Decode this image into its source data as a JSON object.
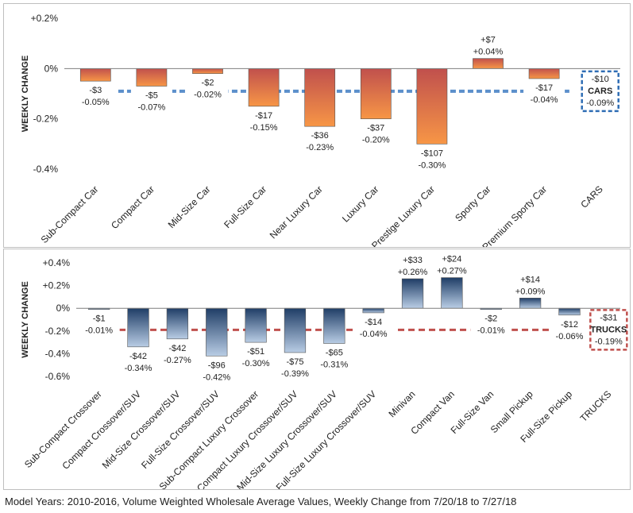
{
  "caption": "Model Years: 2010-2016, Volume Weighted Wholesale Average Values, Weekly Change from 7/20/18 to 7/27/18",
  "chart_data": [
    {
      "type": "bar",
      "title": "",
      "xlabel": "",
      "ylabel": "WEEKLY CHANGE",
      "ylim": [
        -0.4,
        0.2
      ],
      "yticks": [
        0.2,
        0,
        -0.2,
        -0.4
      ],
      "ytick_labels": [
        "+0.2%",
        "0%",
        "-0.2%",
        "-0.4%"
      ],
      "categories": [
        "Sub-Compact Car",
        "Compact Car",
        "Mid-Size Car",
        "Full-Size Car",
        "Near Luxury Car",
        "Luxury Car",
        "Prestige Luxury Car",
        "Sporty Car",
        "Premium Sporty Car",
        "CARS"
      ],
      "values": [
        -0.05,
        -0.07,
        -0.02,
        -0.15,
        -0.23,
        -0.2,
        -0.3,
        0.04,
        -0.04,
        null
      ],
      "dollar_labels": [
        "-$3",
        "-$5",
        "-$2",
        "-$17",
        "-$36",
        "-$37",
        "-$107",
        "+$7",
        "-$17",
        "-$10"
      ],
      "percent_labels": [
        "-0.05%",
        "-0.07%",
        "-0.02%",
        "-0.15%",
        "-0.23%",
        "-0.20%",
        "-0.30%",
        "+0.04%",
        "-0.04%",
        "-0.09%"
      ],
      "average": {
        "value": -0.09,
        "name": "CARS",
        "dollar": "-$10",
        "percent": "-0.09%"
      },
      "colors": {
        "bar_top": "#c0504d",
        "bar_bottom": "#f79646",
        "bar_light": "#e6a08c",
        "avg_line": "#5b8fcb",
        "avg_box": "#2e6db4"
      }
    },
    {
      "type": "bar",
      "title": "",
      "xlabel": "",
      "ylabel": "WEEKLY CHANGE",
      "ylim": [
        -0.6,
        0.4
      ],
      "yticks": [
        0.4,
        0.2,
        0,
        -0.2,
        -0.4,
        -0.6
      ],
      "ytick_labels": [
        "+0.4%",
        "+0.2%",
        "0%",
        "-0.2%",
        "-0.4%",
        "-0.6%"
      ],
      "categories": [
        "Sub-Compact Crossover",
        "Compact Crossover/SUV",
        "Mid-Size Crossover/SUV",
        "Full-Size Crossover/SUV",
        "Sub-Compact Luxury Crossover",
        "Compact Luxury Crossover/SUV",
        "Mid-Size Luxury Crossover/SUV",
        "Full-Size Luxury Crossover/SUV",
        "Minivan",
        "Compact Van",
        "Full-Size Van",
        "Small Pickup",
        "Full-Size Pickup",
        "TRUCKS"
      ],
      "values": [
        -0.01,
        -0.34,
        -0.27,
        -0.42,
        -0.3,
        -0.39,
        -0.31,
        -0.04,
        0.26,
        0.27,
        -0.01,
        0.09,
        -0.06,
        null
      ],
      "dollar_labels": [
        "-$1",
        "-$42",
        "-$42",
        "-$96",
        "-$51",
        "-$75",
        "-$65",
        "-$14",
        "+$33",
        "+$24",
        "-$2",
        "+$14",
        "-$12",
        "-$31"
      ],
      "percent_labels": [
        "-0.01%",
        "-0.34%",
        "-0.27%",
        "-0.42%",
        "-0.30%",
        "-0.39%",
        "-0.31%",
        "-0.04%",
        "+0.26%",
        "+0.27%",
        "-0.01%",
        "+0.09%",
        "-0.06%",
        "-0.19%"
      ],
      "average": {
        "value": -0.19,
        "name": "TRUCKS",
        "dollar": "-$31",
        "percent": "-0.19%"
      },
      "colors": {
        "bar_top": "#1f3d66",
        "bar_bottom": "#b9cde5",
        "avg_line": "#c0504d",
        "avg_box": "#c0504d"
      }
    }
  ]
}
